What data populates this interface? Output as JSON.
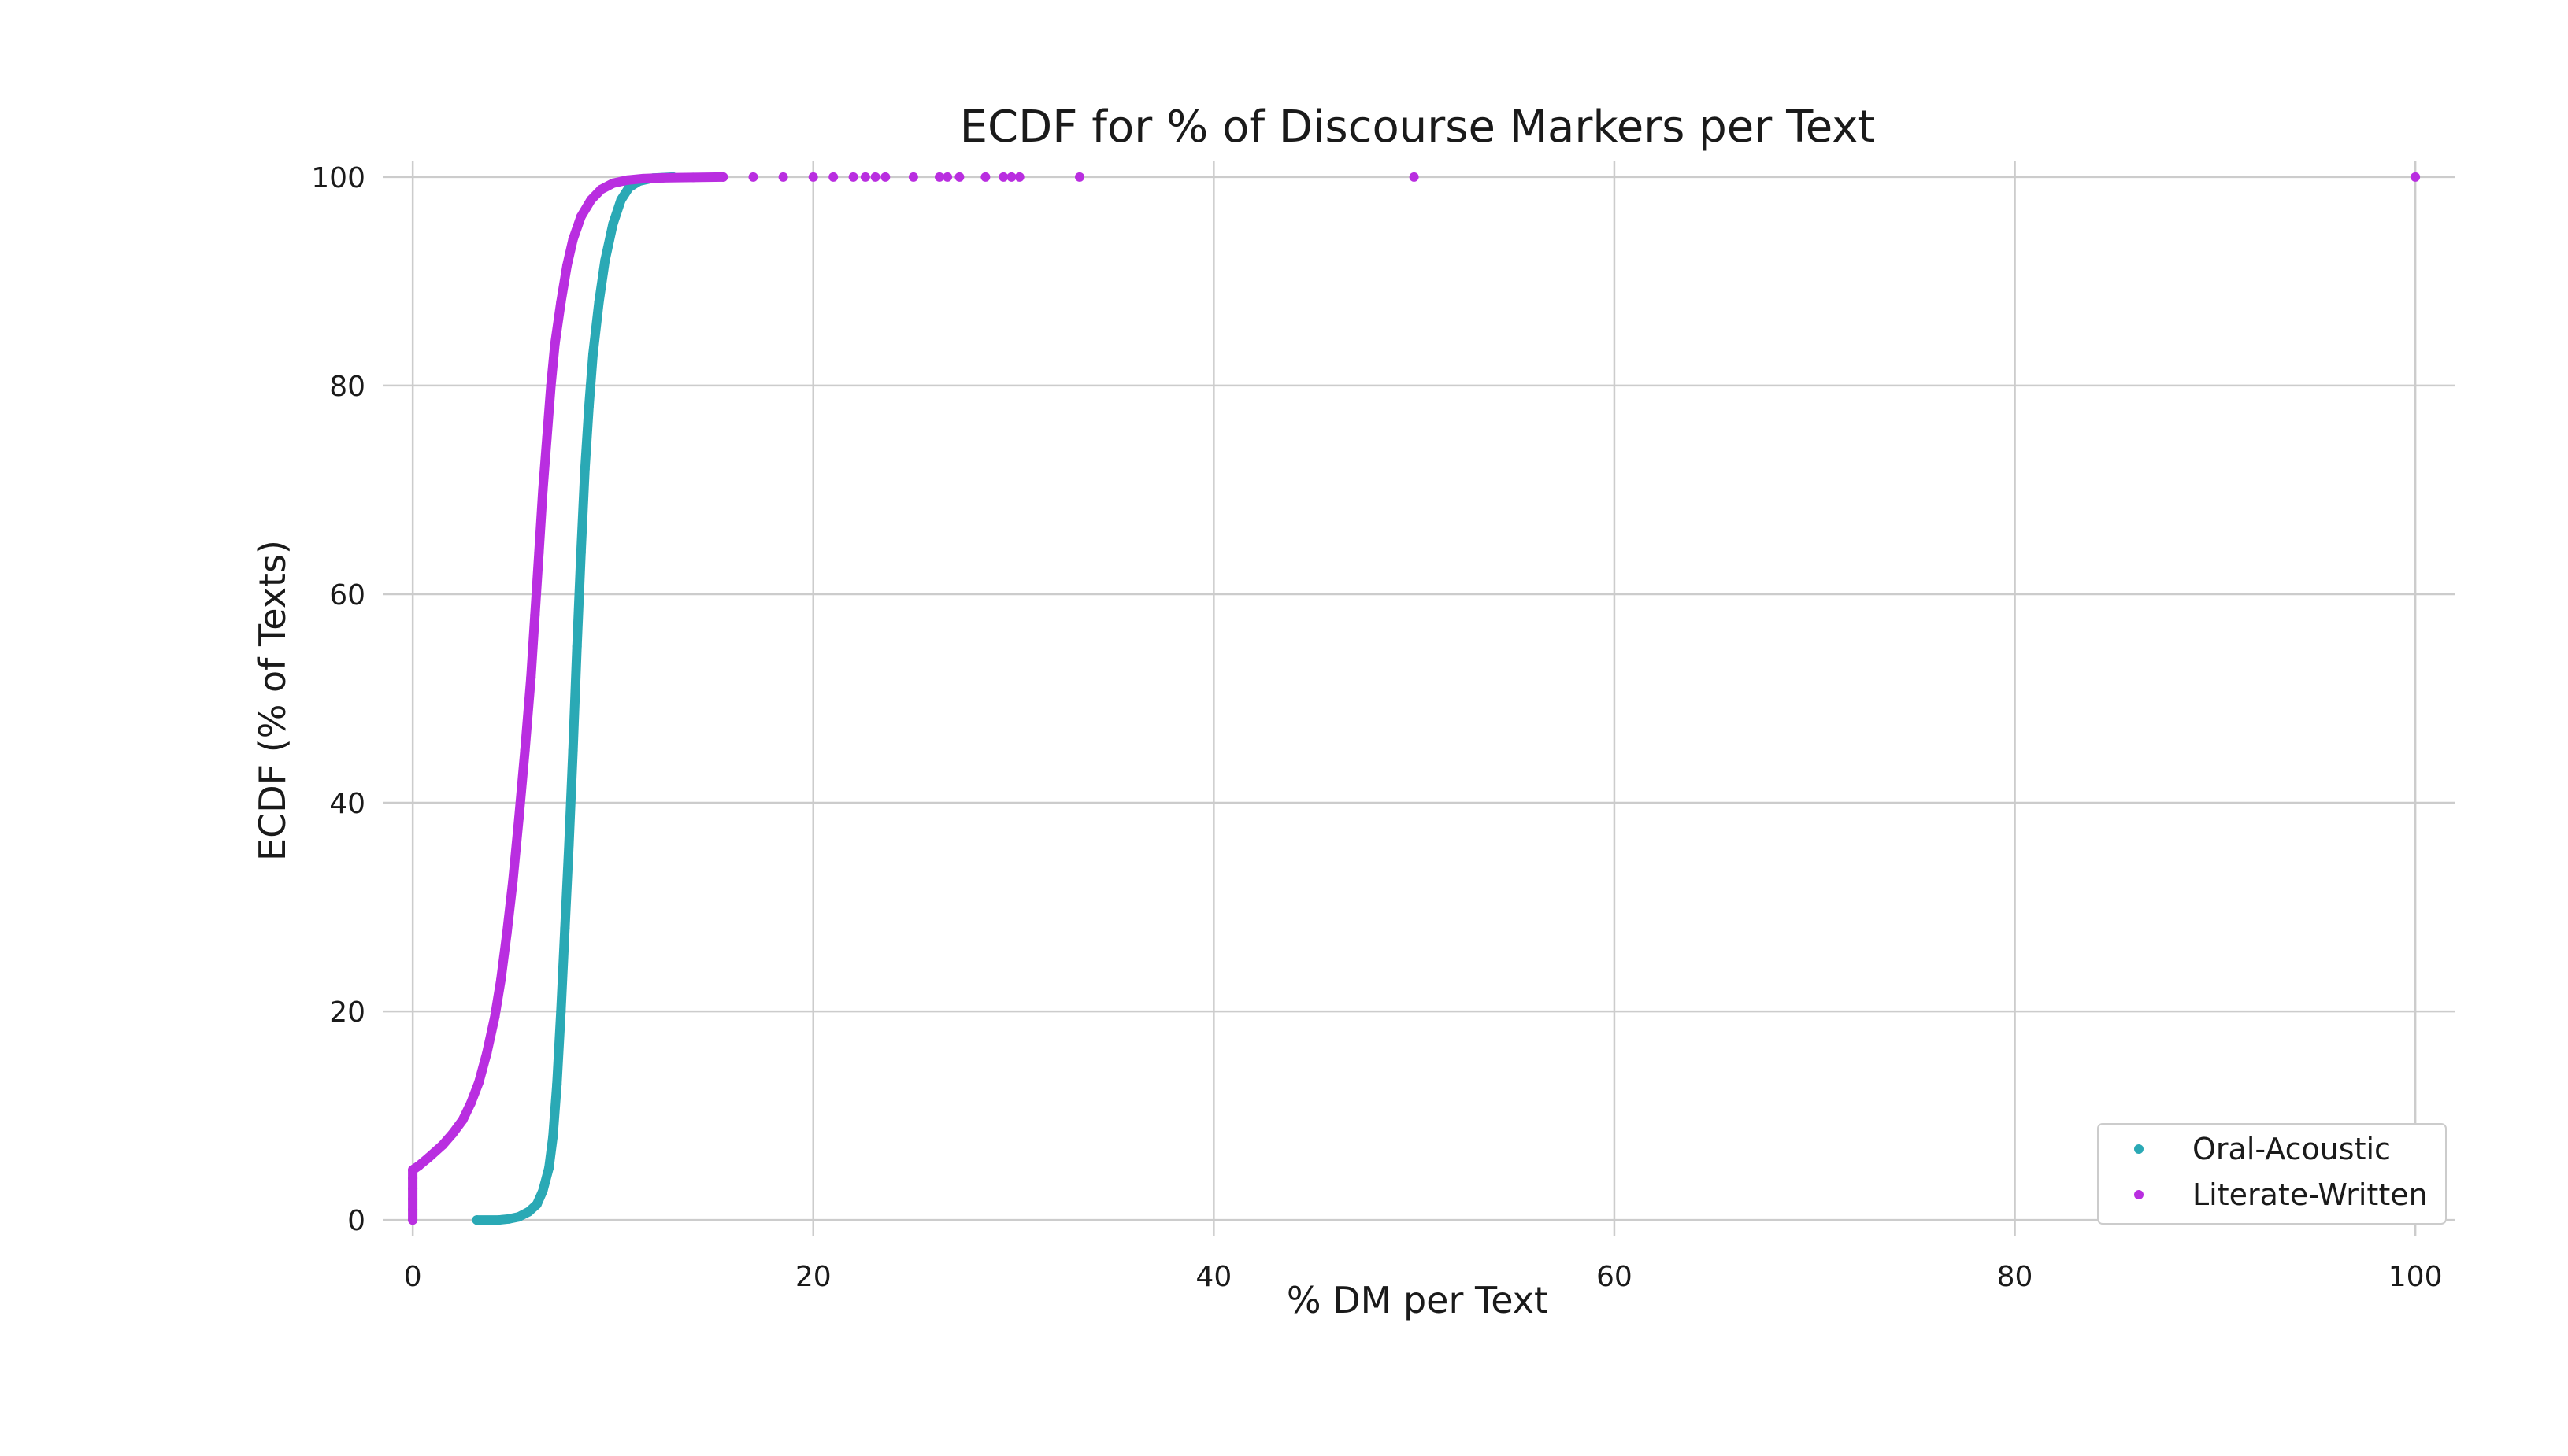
{
  "chart_data": {
    "type": "scatter",
    "title": "ECDF for % of Discourse Markers per Text",
    "xlabel": "% DM per Text",
    "ylabel": "ECDF (% of Texts)",
    "xlim": [
      -1.5,
      102
    ],
    "ylim": [
      -1.5,
      101.5
    ],
    "xticks": [
      0,
      20,
      40,
      60,
      80,
      100
    ],
    "yticks": [
      0,
      20,
      40,
      60,
      80,
      100
    ],
    "grid": true,
    "legend_position": "lower-right",
    "series": [
      {
        "name": "Oral-Acoustic",
        "color": "#2aa9b5",
        "points": [
          [
            3.2,
            0
          ],
          [
            4.3,
            0
          ],
          [
            4.8,
            0.1
          ],
          [
            5.3,
            0.3
          ],
          [
            5.8,
            0.8
          ],
          [
            6.2,
            1.5
          ],
          [
            6.5,
            2.8
          ],
          [
            6.8,
            5
          ],
          [
            7.0,
            8
          ],
          [
            7.2,
            13
          ],
          [
            7.4,
            20
          ],
          [
            7.6,
            28
          ],
          [
            7.8,
            36
          ],
          [
            8.0,
            45
          ],
          [
            8.2,
            55
          ],
          [
            8.4,
            64
          ],
          [
            8.6,
            72
          ],
          [
            8.8,
            78
          ],
          [
            9.0,
            83
          ],
          [
            9.3,
            88
          ],
          [
            9.6,
            92
          ],
          [
            10.0,
            95.5
          ],
          [
            10.4,
            97.8
          ],
          [
            10.8,
            99
          ],
          [
            11.3,
            99.6
          ],
          [
            12.0,
            99.9
          ],
          [
            13.0,
            100
          ]
        ]
      },
      {
        "name": "Literate-Written",
        "color": "#b92ee0",
        "points": [
          [
            0,
            0
          ],
          [
            0,
            1
          ],
          [
            0,
            2
          ],
          [
            0,
            3
          ],
          [
            0,
            4
          ],
          [
            0,
            4.8
          ],
          [
            0.3,
            5.2
          ],
          [
            0.8,
            6
          ],
          [
            1.5,
            7.2
          ],
          [
            2.0,
            8.3
          ],
          [
            2.5,
            9.6
          ],
          [
            2.9,
            11.2
          ],
          [
            3.3,
            13.2
          ],
          [
            3.7,
            16
          ],
          [
            4.1,
            19.5
          ],
          [
            4.4,
            23
          ],
          [
            4.7,
            27.5
          ],
          [
            5.0,
            32.5
          ],
          [
            5.3,
            38.5
          ],
          [
            5.6,
            45
          ],
          [
            5.9,
            52
          ],
          [
            6.1,
            58
          ],
          [
            6.3,
            64
          ],
          [
            6.5,
            70
          ],
          [
            6.7,
            75
          ],
          [
            6.9,
            80
          ],
          [
            7.1,
            84
          ],
          [
            7.4,
            88
          ],
          [
            7.7,
            91.5
          ],
          [
            8.0,
            94
          ],
          [
            8.4,
            96.2
          ],
          [
            8.9,
            97.8
          ],
          [
            9.4,
            98.8
          ],
          [
            10.0,
            99.4
          ],
          [
            10.7,
            99.7
          ],
          [
            11.5,
            99.85
          ],
          [
            12.5,
            99.92
          ],
          [
            14,
            99.96
          ],
          [
            15.5,
            100
          ],
          [
            17,
            100
          ],
          [
            18.5,
            100
          ],
          [
            20,
            100
          ],
          [
            21,
            100
          ],
          [
            22,
            100
          ],
          [
            22.6,
            100
          ],
          [
            23.1,
            100
          ],
          [
            23.6,
            100
          ],
          [
            25,
            100
          ],
          [
            26.3,
            100
          ],
          [
            26.7,
            100
          ],
          [
            27.3,
            100
          ],
          [
            28.6,
            100
          ],
          [
            29.5,
            100
          ],
          [
            29.9,
            100
          ],
          [
            30.3,
            100
          ],
          [
            33.3,
            100
          ],
          [
            50,
            100
          ],
          [
            100,
            100
          ]
        ]
      }
    ]
  }
}
